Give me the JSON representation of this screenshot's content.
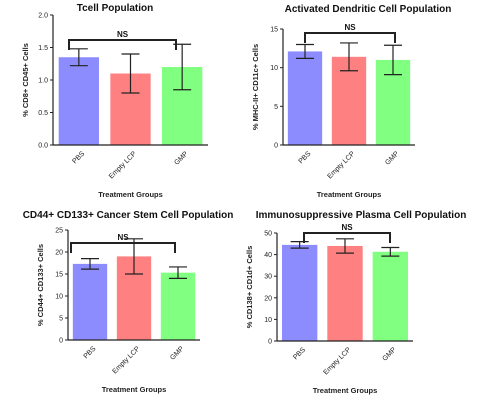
{
  "colors": {
    "PBS": "#8c8cff",
    "Empty LCP": "#ff8080",
    "GMP": "#80ff80"
  },
  "chart_data": [
    {
      "type": "bar",
      "title": "Tcell Population",
      "xlabel": "Treatment Groups",
      "ylabel": "% CD8+ CD45+ Cells",
      "categories": [
        "PBS",
        "Empty LCP",
        "GMP"
      ],
      "values": [
        1.35,
        1.1,
        1.2
      ],
      "errors": [
        0.13,
        0.3,
        0.35
      ],
      "ylim": [
        0,
        2.0
      ],
      "yticks": [
        "0.0",
        "0.5",
        "1.0",
        "1.5",
        "2.0"
      ],
      "significance": "NS"
    },
    {
      "type": "bar",
      "title": "Activated Dendritic Cell Population",
      "xlabel": "Treatment Groups",
      "ylabel": "% MHC-II+ CD11c+ Cells",
      "categories": [
        "PBS",
        "Empty LCP",
        "GMP"
      ],
      "values": [
        12.1,
        11.4,
        11.0
      ],
      "errors": [
        0.9,
        1.8,
        1.9
      ],
      "ylim": [
        0,
        15
      ],
      "yticks": [
        "0",
        "5",
        "10",
        "15"
      ],
      "significance": "NS"
    },
    {
      "type": "bar",
      "title": "CD44+ CD133+ Cancer Stem Cell Population",
      "xlabel": "Treatment Groups",
      "ylabel": "% CD44+ CD133+ Cells",
      "categories": [
        "PBS",
        "Empty LCP",
        "GMP"
      ],
      "values": [
        17.3,
        19.0,
        15.3
      ],
      "errors": [
        1.2,
        4.0,
        1.3
      ],
      "ylim": [
        0,
        25
      ],
      "yticks": [
        "0",
        "5",
        "10",
        "15",
        "20",
        "25"
      ],
      "significance": "NS"
    },
    {
      "type": "bar",
      "title": "Immunosuppressive Plasma Cell Population",
      "xlabel": "Treatment Groups",
      "ylabel": "% CD138+ CD1d+ Cells",
      "categories": [
        "PBS",
        "Empty LCP",
        "GMP"
      ],
      "values": [
        44.5,
        44.0,
        41.3
      ],
      "errors": [
        1.5,
        3.3,
        2.0
      ],
      "ylim": [
        0,
        50
      ],
      "yticks": [
        "0",
        "10",
        "20",
        "30",
        "40",
        "50"
      ],
      "significance": "NS"
    }
  ]
}
